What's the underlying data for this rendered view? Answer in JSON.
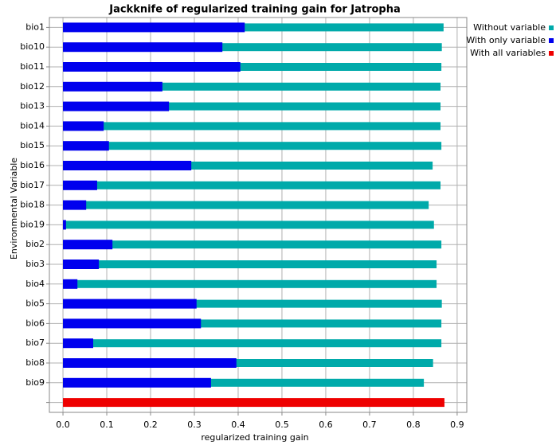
{
  "chart_data": {
    "type": "bar",
    "orientation": "horizontal",
    "title": "Jackknife of regularized training gain for Jatropha",
    "x_label": "regularized training gain",
    "y_label": "Environmental Variable",
    "categories": [
      "bio1",
      "bio10",
      "bio11",
      "bio12",
      "bio13",
      "bio14",
      "bio15",
      "bio16",
      "bio17",
      "bio18",
      "bio19",
      "bio2",
      "bio3",
      "bio4",
      "bio5",
      "bio6",
      "bio7",
      "bio8",
      "bio9",
      null
    ],
    "series": [
      {
        "name": "Without variable",
        "color": "#00aaaa",
        "values": [
          0.869,
          0.865,
          0.864,
          0.862,
          0.862,
          0.862,
          0.864,
          0.844,
          0.862,
          0.835,
          0.847,
          0.864,
          0.853,
          0.853,
          0.865,
          0.864,
          0.864,
          0.845,
          0.824,
          null
        ]
      },
      {
        "name": "With only variable",
        "color": "#0000ee",
        "values": [
          0.415,
          0.364,
          0.405,
          0.227,
          0.242,
          0.093,
          0.105,
          0.293,
          0.078,
          0.053,
          0.007,
          0.113,
          0.082,
          0.033,
          0.305,
          0.315,
          0.069,
          0.396,
          0.338,
          null
        ]
      },
      {
        "name": "With all variables",
        "color": "#ee0000",
        "values": [
          null,
          null,
          null,
          null,
          null,
          null,
          null,
          null,
          null,
          null,
          null,
          null,
          null,
          null,
          null,
          null,
          null,
          null,
          null,
          0.871
        ]
      }
    ],
    "xlim": [
      -0.031,
      0.922
    ],
    "xticks": [
      {
        "value": 0,
        "label": "0.0"
      },
      0.1,
      0.2,
      0.3,
      0.4,
      0.5,
      0.6,
      0.7,
      0.8,
      0.9
    ],
    "grid": true,
    "legend": "top-right"
  }
}
